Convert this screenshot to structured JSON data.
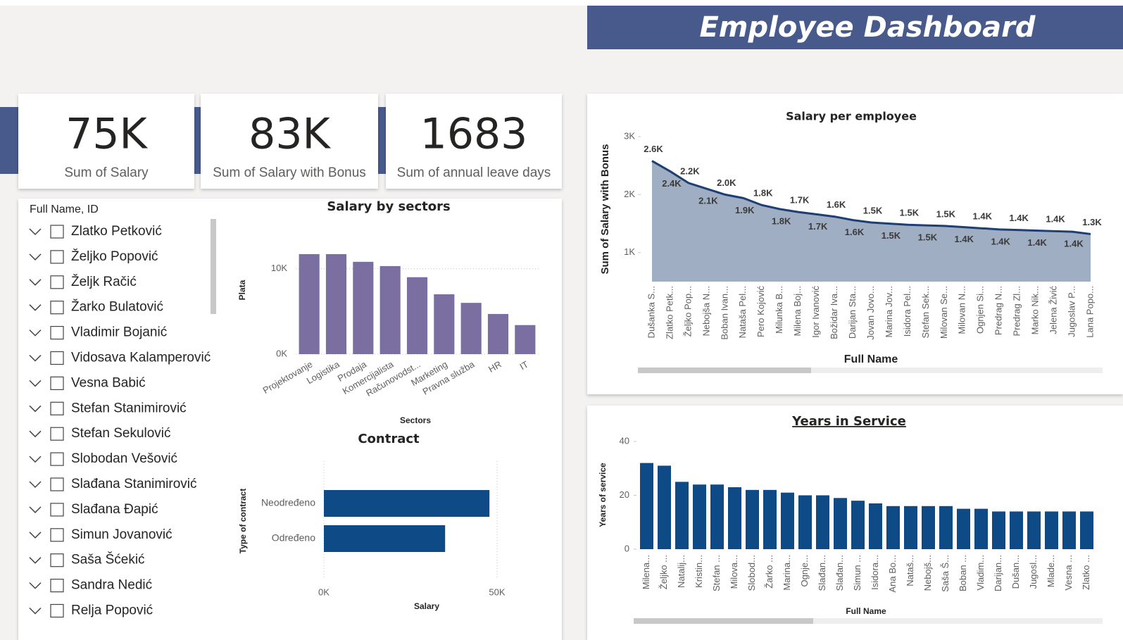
{
  "header": {
    "title": "Employee Dashboard"
  },
  "cards": [
    {
      "value": "75K",
      "label": "Sum of Salary"
    },
    {
      "value": "83K",
      "label": "Sum of Salary with Bonus"
    },
    {
      "value": "1683",
      "label": "Sum of annual leave days"
    }
  ],
  "slicer": {
    "title": "Full Name, ID",
    "items": [
      "Zlatko Petković",
      "Željko Popović",
      "Željk Račić",
      "Žarko Bulatović",
      "Vladimir Bojanić",
      "Vidosava Kalamperović",
      "Vesna Babić",
      "Stefan Stanimirović",
      "Stefan Sekulović",
      "Slobodan Vešović",
      "Slađana Stanimirović",
      "Slađana Đapić",
      "Simun Jovanović",
      "Saša Šćekić",
      "Sandra Nedić",
      "Relja Popović"
    ]
  },
  "chart_data": [
    {
      "type": "bar",
      "title": "Salary by sectors",
      "x_label": "Sectors",
      "y_label": "Plata",
      "categories": [
        "Projektovanje",
        "Logistika",
        "Prodaja",
        "Komercijalista",
        "Računovodst...",
        "Marketing",
        "Pravna služba",
        "HR",
        "IT"
      ],
      "values": [
        11700,
        11700,
        10800,
        10300,
        9000,
        7000,
        6000,
        4700,
        3400
      ],
      "color": "#7b6fa1",
      "ylim": [
        0,
        12600
      ],
      "yticks": [
        {
          "value": 0,
          "label": "0K"
        },
        {
          "value": 10000,
          "label": "10K"
        }
      ],
      "grid": true
    },
    {
      "type": "barh",
      "title": "Contract",
      "x_label": "Salary",
      "y_label": "Type of contract",
      "categories": [
        "Neodređeno",
        "Određeno"
      ],
      "values": [
        47800,
        35000
      ],
      "color": "#0e4a86",
      "xlim": [
        0,
        50000
      ],
      "xticks": [
        {
          "value": 0,
          "label": "0K"
        },
        {
          "value": 50000,
          "label": "50K"
        }
      ],
      "grid": true
    },
    {
      "type": "area",
      "title": "Salary per employee",
      "x_label": "Full Name",
      "y_label": "Sum of Salary with Bonus",
      "categories": [
        "Dušanka S...",
        "Zlatko Petk...",
        "Željko Pop...",
        "Nebojša N...",
        "Boban Ivan...",
        "Nataša Pel...",
        "Pero Kojović",
        "Milunka B...",
        "Milena Boj...",
        "Igor Ivanović",
        "Božidar Iva...",
        "Darijan Sta...",
        "Jovan Jovo...",
        "Marina Jov...",
        "Isidora Pel...",
        "Stefan Sek...",
        "Milovan Se...",
        "Milovan N...",
        "Ognjen Si...",
        "Predrag N...",
        "Predrag Zl...",
        "Marko Nik...",
        "Jelena Živić",
        "Jugoslav P...",
        "Lana Popo..."
      ],
      "values": [
        2580,
        2400,
        2200,
        2100,
        2000,
        1940,
        1820,
        1750,
        1700,
        1660,
        1620,
        1560,
        1520,
        1500,
        1480,
        1470,
        1460,
        1440,
        1420,
        1400,
        1390,
        1380,
        1370,
        1360,
        1320
      ],
      "value_labels": [
        "2.6K",
        "2.4K",
        "2.2K",
        "2.1K",
        "2.0K",
        "1.9K",
        "1.8K",
        "1.8K",
        "1.7K",
        "1.7K",
        "1.6K",
        "1.6K",
        "1.5K",
        "1.5K",
        "1.5K",
        "1.5K",
        "1.5K",
        "1.4K",
        "1.4K",
        "1.4K",
        "1.4K",
        "1.4K",
        "1.4K",
        "1.4K",
        "1.3K"
      ],
      "color": "#1d3f73",
      "ylim": [
        500,
        3000
      ],
      "yticks": [
        {
          "value": 1000,
          "label": "1K"
        },
        {
          "value": 2000,
          "label": "2K"
        },
        {
          "value": 3000,
          "label": "3K"
        }
      ],
      "grid": false
    },
    {
      "type": "bar",
      "title": "Years in Service",
      "x_label": "Full Name",
      "y_label": "Years of service",
      "categories": [
        "Milena...",
        "Željko ...",
        "Natalij...",
        "Kristin...",
        "Stefan ...",
        "Milova...",
        "Slobod...",
        "Žarko ...",
        "Marina...",
        "Ognje...",
        "Slađan...",
        "Slađan...",
        "Simun ...",
        "Isidora...",
        "Ana Bo...",
        "Nataš...",
        "Nebojš...",
        "Saša Š...",
        "Boban ...",
        "Vladim...",
        "Darijan...",
        "Dušan...",
        "Jugosl...",
        "Mlade...",
        "Vesna ...",
        "Zlatko ..."
      ],
      "values": [
        32,
        31,
        25,
        24,
        24,
        23,
        22,
        22,
        21,
        20,
        20,
        19,
        18,
        17,
        16,
        16,
        16,
        16,
        15,
        15,
        14,
        14,
        14,
        14,
        14,
        14
      ],
      "color": "#0e4a86",
      "ylim": [
        0,
        40
      ],
      "yticks": [
        0,
        20,
        40
      ],
      "grid": false
    }
  ]
}
